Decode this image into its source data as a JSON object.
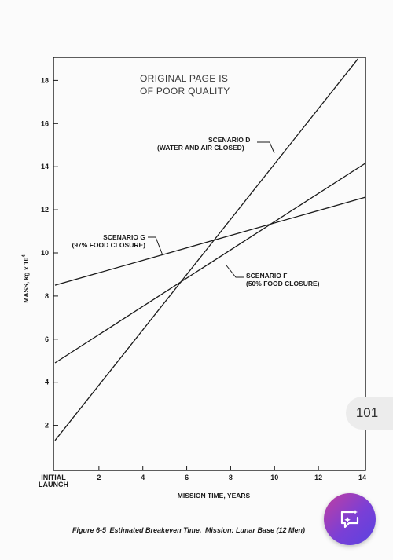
{
  "stamp": {
    "line1": "ORIGINAL PAGE IS",
    "line2": "OF POOR QUALITY"
  },
  "caption": {
    "figure": "Figure 6-5",
    "title": "Estimated Breakeven Time.",
    "mission": "Mission:  Lunar Base (12 Men)"
  },
  "page_number": "101",
  "fab_icon": "chat-sparkle-icon",
  "colors": {
    "fab_start": "#c13fa0",
    "fab_end": "#5a43e0",
    "line": "#1a1a1a"
  },
  "chart_data": {
    "type": "line",
    "xlabel": "MISSION TIME, YEARS",
    "ylabel": "MASS, kg x 10",
    "ylabel_exponent": "4",
    "xlim": [
      0,
      14
    ],
    "ylim": [
      0,
      19
    ],
    "x_tick_labels": [
      {
        "value": 0,
        "lines": [
          "INITIAL",
          "LAUNCH"
        ]
      },
      {
        "value": 2,
        "lines": [
          "2"
        ]
      },
      {
        "value": 4,
        "lines": [
          "4"
        ]
      },
      {
        "value": 6,
        "lines": [
          "6"
        ]
      },
      {
        "value": 8,
        "lines": [
          "8"
        ]
      },
      {
        "value": 10,
        "lines": [
          "10"
        ]
      },
      {
        "value": 12,
        "lines": [
          "12"
        ]
      },
      {
        "value": 14,
        "lines": [
          "14"
        ]
      }
    ],
    "y_ticks": [
      2,
      4,
      6,
      8,
      10,
      12,
      14,
      16,
      18
    ],
    "grid": false,
    "series": [
      {
        "key": "d",
        "label_lines": [
          "SCENARIO D",
          "(WATER AND AIR CLOSED)"
        ],
        "points": [
          [
            0,
            1.3
          ],
          [
            13.8,
            19
          ]
        ]
      },
      {
        "key": "f",
        "label_lines": [
          "SCENARIO F",
          "(50% FOOD CLOSURE)"
        ],
        "points": [
          [
            0,
            4.9
          ],
          [
            14.2,
            14.2
          ]
        ]
      },
      {
        "key": "g",
        "label_lines": [
          "SCENARIO G",
          "(97% FOOD CLOSURE)"
        ],
        "points": [
          [
            0,
            8.5
          ],
          [
            14.2,
            12.6
          ]
        ]
      }
    ]
  }
}
